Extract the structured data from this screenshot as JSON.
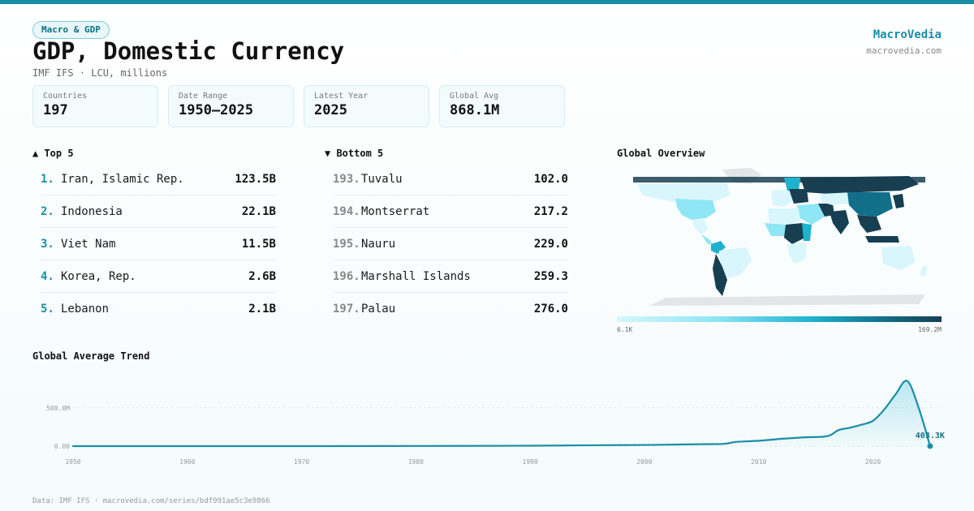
{
  "header": {
    "category": "Macro & GDP",
    "title": "GDP, Domestic Currency",
    "subtitle": "IMF IFS · LCU, millions",
    "brand": "MacroVedia",
    "brand_url": "macrovedia.com"
  },
  "stats": [
    {
      "label": "Countries",
      "value": "197"
    },
    {
      "label": "Date Range",
      "value": "1950–2025"
    },
    {
      "label": "Latest Year",
      "value": "2025"
    },
    {
      "label": "Global Avg",
      "value": "868.1M"
    }
  ],
  "top5": {
    "heading": "▲ Top 5",
    "items": [
      {
        "rank": "1.",
        "name": "Iran, Islamic Rep.",
        "value": "123.5B"
      },
      {
        "rank": "2.",
        "name": "Indonesia",
        "value": "22.1B"
      },
      {
        "rank": "3.",
        "name": "Viet Nam",
        "value": "11.5B"
      },
      {
        "rank": "4.",
        "name": "Korea, Rep.",
        "value": "2.6B"
      },
      {
        "rank": "5.",
        "name": "Lebanon",
        "value": "2.1B"
      }
    ]
  },
  "bottom5": {
    "heading": "▼ Bottom 5",
    "items": [
      {
        "rank": "193.",
        "name": "Tuvalu",
        "value": "102.0"
      },
      {
        "rank": "194.",
        "name": "Montserrat",
        "value": "217.2"
      },
      {
        "rank": "195.",
        "name": "Nauru",
        "value": "229.0"
      },
      {
        "rank": "196.",
        "name": "Marshall Islands",
        "value": "259.3"
      },
      {
        "rank": "197.",
        "name": "Palau",
        "value": "276.0"
      }
    ]
  },
  "map": {
    "heading": "Global Overview",
    "legend_min": "6.1K",
    "legend_max": "169.2M",
    "colors": {
      "low": "#d8f6fb",
      "mid": "#1fb2cf",
      "high": "#173f51",
      "nodata": "#e3e6e8"
    }
  },
  "chart_data": {
    "type": "area",
    "title": "Global Average Trend",
    "x": [
      1950,
      1960,
      1970,
      1980,
      1990,
      1994,
      2000,
      2005,
      2007,
      2008,
      2010,
      2012,
      2014,
      2016,
      2017,
      2018,
      2019,
      2020,
      2021,
      2022,
      2023,
      2024,
      2025
    ],
    "y": [
      0,
      0,
      0,
      2,
      5,
      10,
      15,
      25,
      30,
      55,
      70,
      95,
      115,
      130,
      210,
      240,
      280,
      330,
      480,
      680,
      850,
      500,
      0.4033
    ],
    "xticks": [
      1950,
      1960,
      1970,
      1980,
      1990,
      2000,
      2010,
      2020
    ],
    "ytick_labels": [
      "0.00",
      "500.0M"
    ],
    "yticks": [
      0,
      500
    ],
    "ylim": [
      0,
      900
    ],
    "xlim": [
      1950,
      2026
    ],
    "end_label": "403.3K",
    "color": "#1a8ea6",
    "grid": true
  },
  "footer": "Data: IMF IFS · macrovedia.com/series/bdf991ae5c3e9866"
}
